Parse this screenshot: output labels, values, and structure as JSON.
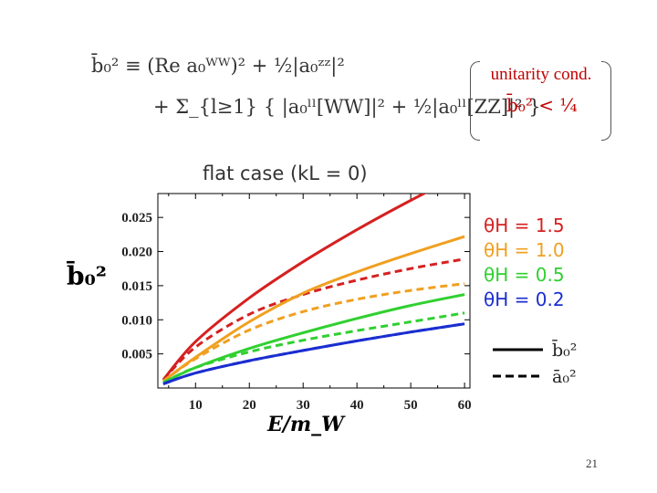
{
  "formula": {
    "line1": "b̄₀² ≡ (Re a₀ᵂᵂ)² + ½|a₀ᶻᶻ|²",
    "line2": "+ Σ_{l≥1} { |a₀ˡˡ[WW]|² + ½|a₀ˡˡ[ZZ]|² }"
  },
  "unitarity": {
    "title": "unitarity cond.",
    "expr": "b̄₀² < ¼"
  },
  "slide_number": "21",
  "chart_data": {
    "type": "line",
    "title": "flat case (kL = 0)",
    "xlabel": "E/m_W",
    "ylabel": "b̄₀²",
    "xlim": [
      3,
      61
    ],
    "ylim": [
      0,
      0.0285
    ],
    "x_ticks": [
      10,
      20,
      30,
      40,
      50,
      60
    ],
    "y_ticks": [
      0.005,
      0.01,
      0.015,
      0.02,
      0.025
    ],
    "x_tick_labels": [
      "10",
      "20",
      "30",
      "40",
      "50",
      "60"
    ],
    "y_tick_labels": [
      "0.005",
      "0.010",
      "0.015",
      "0.020",
      "0.025"
    ],
    "x": [
      4,
      10,
      20,
      30,
      40,
      50,
      60
    ],
    "series": [
      {
        "name": "θH = 1.5",
        "style": "solid",
        "color": "#d62020",
        "values": [
          0.0012,
          0.0068,
          0.0132,
          0.0185,
          0.0232,
          0.0275,
          0.0315
        ]
      },
      {
        "name": "θH = 1.5",
        "style": "dashed",
        "color": "#d62020",
        "values": [
          0.0012,
          0.006,
          0.0108,
          0.0137,
          0.0158,
          0.0175,
          0.0189
        ]
      },
      {
        "name": "θH = 1.0",
        "style": "solid",
        "color": "#f0a020",
        "values": [
          0.001,
          0.0045,
          0.0097,
          0.0139,
          0.017,
          0.0197,
          0.0222
        ]
      },
      {
        "name": "θH = 1.0",
        "style": "dashed",
        "color": "#f0a020",
        "values": [
          0.001,
          0.0043,
          0.0085,
          0.0112,
          0.013,
          0.0143,
          0.0153
        ]
      },
      {
        "name": "θH = 0.5",
        "style": "solid",
        "color": "#30d030",
        "values": [
          0.0008,
          0.003,
          0.0058,
          0.0081,
          0.0102,
          0.0121,
          0.0137
        ]
      },
      {
        "name": "θH = 0.5",
        "style": "dashed",
        "color": "#30d030",
        "values": [
          0.0008,
          0.003,
          0.0053,
          0.007,
          0.0084,
          0.0097,
          0.011
        ]
      },
      {
        "name": "θH = 0.2",
        "style": "solid",
        "color": "#1a2ed0",
        "values": [
          0.0006,
          0.0022,
          0.004,
          0.0055,
          0.0069,
          0.0082,
          0.0094
        ]
      },
      {
        "name": "θH = 0.2",
        "style": "dashed",
        "color": "#1a2ed0",
        "values": [
          0.0006,
          0.0022,
          0.004,
          0.0055,
          0.0069,
          0.0082,
          0.0094
        ]
      }
    ],
    "legend_theta": [
      "θH = 1.5",
      "θH = 1.0",
      "θH = 0.5",
      "θH = 0.2"
    ],
    "legend_theta_colors": [
      "#d62020",
      "#f0a020",
      "#30d030",
      "#1a2ed0"
    ],
    "legend_lines": [
      {
        "label": "b̄₀²",
        "style": "solid"
      },
      {
        "label": "ā₀²",
        "style": "dashed"
      }
    ],
    "legend_position": "right"
  }
}
